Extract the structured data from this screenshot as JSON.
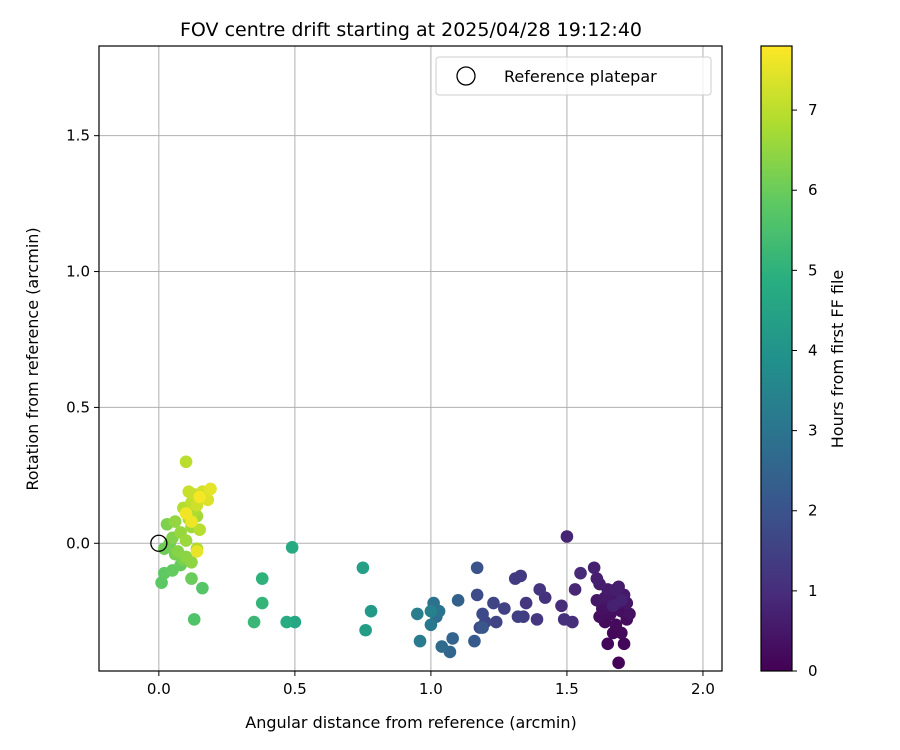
{
  "chart_data": {
    "type": "scatter",
    "title": "FOV centre drift starting at 2025/04/28 19:12:40",
    "xlabel": "Angular distance from reference (arcmin)",
    "ylabel": "Rotation from reference (arcmin)",
    "xlim": [
      -0.22,
      2.07
    ],
    "ylim": [
      -0.47,
      1.83
    ],
    "xticks": [
      0.0,
      0.5,
      1.0,
      1.5,
      2.0
    ],
    "xtick_labels": [
      "0.0",
      "0.5",
      "1.0",
      "1.5",
      "2.0"
    ],
    "yticks": [
      0.0,
      0.5,
      1.0,
      1.5
    ],
    "ytick_labels": [
      "0.0",
      "0.5",
      "1.0",
      "1.5"
    ],
    "grid": true,
    "colormap": "viridis",
    "colorbar": {
      "label": "Hours from first FF file",
      "range": [
        0,
        7.8
      ],
      "ticks": [
        0,
        1,
        2,
        3,
        4,
        5,
        6,
        7
      ],
      "tick_labels": [
        "0",
        "1",
        "2",
        "3",
        "4",
        "5",
        "6",
        "7"
      ]
    },
    "legend": {
      "location": "top-right",
      "entries": [
        "Reference platepar"
      ]
    },
    "reference_point": {
      "x": 0.0,
      "y": 0.0
    },
    "points": [
      {
        "x": 1.69,
        "y": -0.44,
        "c": 0.05
      },
      {
        "x": 1.65,
        "y": -0.37,
        "c": 0.1
      },
      {
        "x": 1.71,
        "y": -0.37,
        "c": 0.12
      },
      {
        "x": 1.67,
        "y": -0.33,
        "c": 0.15
      },
      {
        "x": 1.7,
        "y": -0.33,
        "c": 0.18
      },
      {
        "x": 1.64,
        "y": -0.29,
        "c": 0.2
      },
      {
        "x": 1.68,
        "y": -0.3,
        "c": 0.22
      },
      {
        "x": 1.72,
        "y": -0.28,
        "c": 0.25
      },
      {
        "x": 1.62,
        "y": -0.27,
        "c": 0.28
      },
      {
        "x": 1.66,
        "y": -0.26,
        "c": 0.3
      },
      {
        "x": 1.7,
        "y": -0.25,
        "c": 0.32
      },
      {
        "x": 1.73,
        "y": -0.26,
        "c": 0.35
      },
      {
        "x": 1.63,
        "y": -0.24,
        "c": 0.38
      },
      {
        "x": 1.66,
        "y": -0.23,
        "c": 0.4
      },
      {
        "x": 1.69,
        "y": -0.22,
        "c": 0.42
      },
      {
        "x": 1.72,
        "y": -0.22,
        "c": 0.45
      },
      {
        "x": 1.61,
        "y": -0.21,
        "c": 0.48
      },
      {
        "x": 1.64,
        "y": -0.2,
        "c": 0.5
      },
      {
        "x": 1.67,
        "y": -0.19,
        "c": 0.52
      },
      {
        "x": 1.71,
        "y": -0.19,
        "c": 0.55
      },
      {
        "x": 1.65,
        "y": -0.17,
        "c": 0.58
      },
      {
        "x": 1.69,
        "y": -0.16,
        "c": 0.6
      },
      {
        "x": 1.62,
        "y": -0.15,
        "c": 0.62
      },
      {
        "x": 1.68,
        "y": -0.17,
        "c": 0.65
      },
      {
        "x": 1.61,
        "y": -0.13,
        "c": 0.68
      },
      {
        "x": 1.6,
        "y": -0.09,
        "c": 0.7
      },
      {
        "x": 1.67,
        "y": -0.23,
        "c": 0.72
      },
      {
        "x": 1.7,
        "y": -0.21,
        "c": 0.75
      },
      {
        "x": 1.5,
        "y": 0.025,
        "c": 0.8
      },
      {
        "x": 1.53,
        "y": -0.17,
        "c": 0.85
      },
      {
        "x": 1.55,
        "y": -0.11,
        "c": 0.9
      },
      {
        "x": 1.48,
        "y": -0.23,
        "c": 0.95
      },
      {
        "x": 1.52,
        "y": -0.29,
        "c": 1.0
      },
      {
        "x": 1.49,
        "y": -0.28,
        "c": 1.05
      },
      {
        "x": 1.42,
        "y": -0.2,
        "c": 1.1
      },
      {
        "x": 1.4,
        "y": -0.17,
        "c": 1.15
      },
      {
        "x": 1.39,
        "y": -0.28,
        "c": 1.2
      },
      {
        "x": 1.35,
        "y": -0.22,
        "c": 1.25
      },
      {
        "x": 1.33,
        "y": -0.12,
        "c": 1.3
      },
      {
        "x": 1.31,
        "y": -0.13,
        "c": 1.35
      },
      {
        "x": 1.34,
        "y": -0.27,
        "c": 1.4
      },
      {
        "x": 1.32,
        "y": -0.27,
        "c": 1.45
      },
      {
        "x": 1.27,
        "y": -0.24,
        "c": 1.5
      },
      {
        "x": 1.24,
        "y": -0.29,
        "c": 1.55
      },
      {
        "x": 1.23,
        "y": -0.22,
        "c": 1.6
      },
      {
        "x": 1.2,
        "y": -0.29,
        "c": 1.65
      },
      {
        "x": 1.19,
        "y": -0.26,
        "c": 1.7
      },
      {
        "x": 1.18,
        "y": -0.31,
        "c": 1.75
      },
      {
        "x": 1.17,
        "y": -0.19,
        "c": 1.8
      },
      {
        "x": 1.17,
        "y": -0.09,
        "c": 2.0
      },
      {
        "x": 1.19,
        "y": -0.31,
        "c": 2.1
      },
      {
        "x": 1.16,
        "y": -0.36,
        "c": 2.2
      },
      {
        "x": 1.1,
        "y": -0.21,
        "c": 2.4
      },
      {
        "x": 1.08,
        "y": -0.35,
        "c": 2.5
      },
      {
        "x": 1.07,
        "y": -0.4,
        "c": 2.6
      },
      {
        "x": 1.04,
        "y": -0.38,
        "c": 2.7
      },
      {
        "x": 1.02,
        "y": -0.27,
        "c": 2.8
      },
      {
        "x": 1.01,
        "y": -0.22,
        "c": 2.9
      },
      {
        "x": 1.03,
        "y": -0.25,
        "c": 3.0
      },
      {
        "x": 1.0,
        "y": -0.3,
        "c": 3.1
      },
      {
        "x": 0.96,
        "y": -0.36,
        "c": 3.2
      },
      {
        "x": 0.95,
        "y": -0.26,
        "c": 3.3
      },
      {
        "x": 1.0,
        "y": -0.25,
        "c": 3.4
      },
      {
        "x": 0.78,
        "y": -0.25,
        "c": 4.2
      },
      {
        "x": 0.76,
        "y": -0.32,
        "c": 4.3
      },
      {
        "x": 0.75,
        "y": -0.09,
        "c": 4.4
      },
      {
        "x": 0.5,
        "y": -0.29,
        "c": 4.6
      },
      {
        "x": 0.49,
        "y": -0.015,
        "c": 4.7
      },
      {
        "x": 0.47,
        "y": -0.29,
        "c": 4.8
      },
      {
        "x": 0.38,
        "y": -0.13,
        "c": 5.0
      },
      {
        "x": 0.38,
        "y": -0.22,
        "c": 5.1
      },
      {
        "x": 0.35,
        "y": -0.29,
        "c": 5.2
      },
      {
        "x": 0.13,
        "y": -0.28,
        "c": 5.6
      },
      {
        "x": 0.16,
        "y": -0.165,
        "c": 5.7
      },
      {
        "x": 0.01,
        "y": -0.145,
        "c": 5.8
      },
      {
        "x": 0.02,
        "y": -0.11,
        "c": 5.85
      },
      {
        "x": 0.05,
        "y": -0.1,
        "c": 5.9
      },
      {
        "x": 0.08,
        "y": -0.08,
        "c": 5.95
      },
      {
        "x": 0.12,
        "y": -0.13,
        "c": 6.0
      },
      {
        "x": 0.02,
        "y": -0.02,
        "c": 6.05
      },
      {
        "x": 0.04,
        "y": 0.0,
        "c": 6.1
      },
      {
        "x": 0.06,
        "y": -0.04,
        "c": 6.15
      },
      {
        "x": 0.09,
        "y": -0.06,
        "c": 6.2
      },
      {
        "x": 0.03,
        "y": 0.07,
        "c": 6.25
      },
      {
        "x": 0.05,
        "y": 0.02,
        "c": 6.3
      },
      {
        "x": 0.07,
        "y": -0.03,
        "c": 6.35
      },
      {
        "x": 0.1,
        "y": -0.05,
        "c": 6.4
      },
      {
        "x": 0.12,
        "y": -0.07,
        "c": 6.45
      },
      {
        "x": 0.06,
        "y": 0.08,
        "c": 6.5
      },
      {
        "x": 0.08,
        "y": 0.04,
        "c": 6.55
      },
      {
        "x": 0.1,
        "y": 0.01,
        "c": 6.6
      },
      {
        "x": 0.12,
        "y": 0.06,
        "c": 6.65
      },
      {
        "x": 0.14,
        "y": 0.1,
        "c": 6.7
      },
      {
        "x": 0.11,
        "y": 0.09,
        "c": 6.75
      },
      {
        "x": 0.13,
        "y": 0.12,
        "c": 6.8
      },
      {
        "x": 0.14,
        "y": -0.02,
        "c": 6.85
      },
      {
        "x": 0.09,
        "y": 0.13,
        "c": 6.9
      },
      {
        "x": 0.15,
        "y": 0.05,
        "c": 6.95
      },
      {
        "x": 0.1,
        "y": 0.3,
        "c": 7.0
      },
      {
        "x": 0.12,
        "y": 0.15,
        "c": 7.05
      },
      {
        "x": 0.13,
        "y": 0.18,
        "c": 7.1
      },
      {
        "x": 0.11,
        "y": 0.19,
        "c": 7.15
      },
      {
        "x": 0.14,
        "y": 0.14,
        "c": 7.2
      },
      {
        "x": 0.16,
        "y": 0.19,
        "c": 7.3
      },
      {
        "x": 0.18,
        "y": 0.16,
        "c": 7.4
      },
      {
        "x": 0.19,
        "y": 0.2,
        "c": 7.5
      },
      {
        "x": 0.14,
        "y": -0.03,
        "c": 7.55
      },
      {
        "x": 0.12,
        "y": 0.08,
        "c": 7.6
      },
      {
        "x": 0.1,
        "y": 0.11,
        "c": 7.65
      },
      {
        "x": 0.15,
        "y": 0.17,
        "c": 7.7
      }
    ]
  }
}
